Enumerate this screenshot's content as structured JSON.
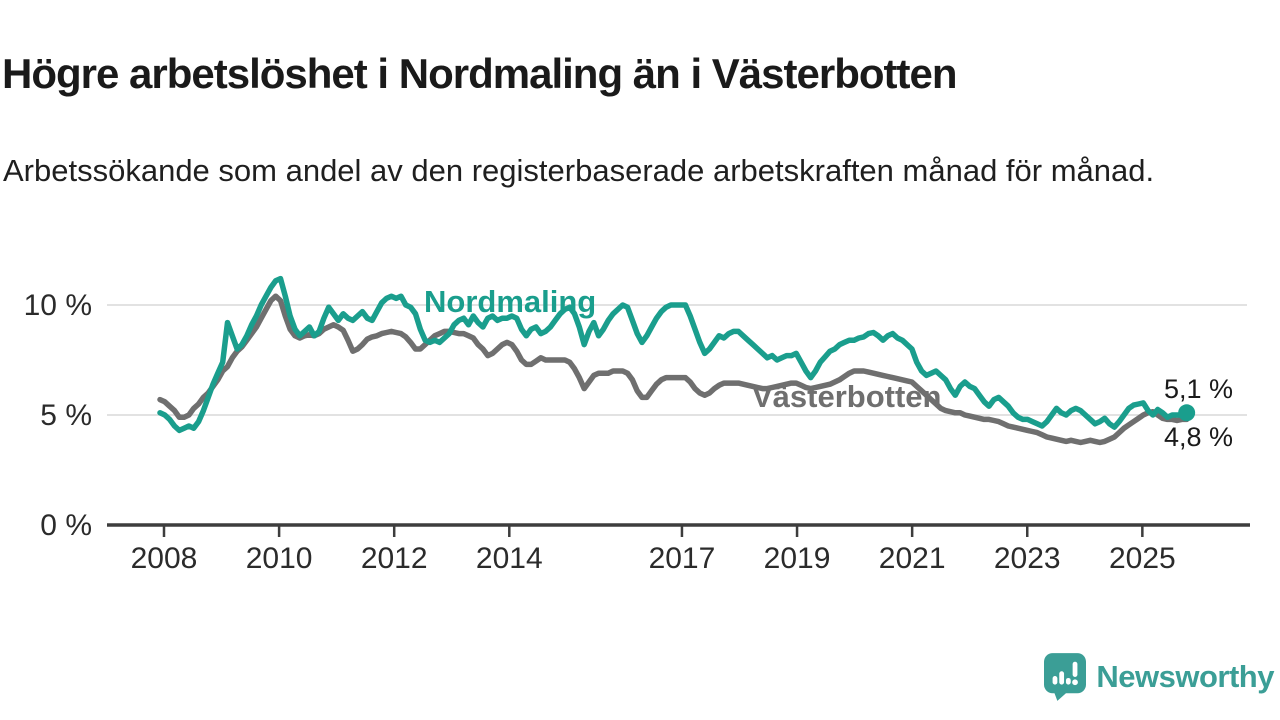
{
  "header": {
    "title": "Högre arbetslöshet i Nordmaling än i Västerbotten",
    "subtitle": "Arbetssökande som andel av den registerbaserade arbetskraften månad för månad."
  },
  "chart_data": {
    "type": "line",
    "unit": "%",
    "frequency": "monthly",
    "x_range": [
      "2008-01",
      "2025-10"
    ],
    "ylim": [
      0,
      11.6
    ],
    "grid": "horizontal-only",
    "legend_position": "inline-labels-on-lines",
    "x_ticks": [
      {
        "year": 2008,
        "label": "2008"
      },
      {
        "year": 2010,
        "label": "2010"
      },
      {
        "year": 2012,
        "label": "2012"
      },
      {
        "year": 2014,
        "label": "2014"
      },
      {
        "year": 2017,
        "label": "2017"
      },
      {
        "year": 2019,
        "label": "2019"
      },
      {
        "year": 2021,
        "label": "2021"
      },
      {
        "year": 2023,
        "label": "2023"
      },
      {
        "year": 2025,
        "label": "2025"
      }
    ],
    "y_ticks": [
      {
        "value": 10,
        "label": "10 %"
      },
      {
        "value": 5,
        "label": "5 %"
      },
      {
        "value": 0,
        "label": "0 %"
      }
    ],
    "series": [
      {
        "name": "Nordmaling",
        "color": "#1a9e8d",
        "end_value_label": "5,1 %",
        "values": [
          5.1,
          5.0,
          4.8,
          4.5,
          4.3,
          4.4,
          4.5,
          4.4,
          4.7,
          5.2,
          5.8,
          6.4,
          6.9,
          7.4,
          9.2,
          8.6,
          8.0,
          8.2,
          8.6,
          9.1,
          9.5,
          10.0,
          10.4,
          10.8,
          11.1,
          11.2,
          10.4,
          9.5,
          8.9,
          8.6,
          8.8,
          9.0,
          8.6,
          8.8,
          9.4,
          9.9,
          9.6,
          9.3,
          9.6,
          9.4,
          9.3,
          9.5,
          9.7,
          9.4,
          9.3,
          9.7,
          10.1,
          10.3,
          10.4,
          10.3,
          10.4,
          10.0,
          9.9,
          9.6,
          8.9,
          8.4,
          8.3,
          8.4,
          8.3,
          8.5,
          8.7,
          9.1,
          9.3,
          9.4,
          9.1,
          9.5,
          9.2,
          9.0,
          9.4,
          9.5,
          9.3,
          9.4,
          9.4,
          9.5,
          9.4,
          8.9,
          8.6,
          8.9,
          9.0,
          8.7,
          8.8,
          9.0,
          9.3,
          9.6,
          9.8,
          9.9,
          9.6,
          9.0,
          8.2,
          8.8,
          9.2,
          8.6,
          8.9,
          9.3,
          9.6,
          9.8,
          10.0,
          9.9,
          9.3,
          8.7,
          8.3,
          8.6,
          9.0,
          9.4,
          9.7,
          9.9,
          10.0,
          10.0,
          10.0,
          10.0,
          9.5,
          8.9,
          8.3,
          7.8,
          8.0,
          8.3,
          8.6,
          8.5,
          8.7,
          8.8,
          8.8,
          8.6,
          8.4,
          8.2,
          8.0,
          7.8,
          7.6,
          7.7,
          7.5,
          7.6,
          7.7,
          7.7,
          7.8,
          7.4,
          7.0,
          6.7,
          7.0,
          7.4,
          7.65,
          7.9,
          8.0,
          8.2,
          8.3,
          8.4,
          8.4,
          8.5,
          8.55,
          8.7,
          8.75,
          8.6,
          8.4,
          8.6,
          8.7,
          8.5,
          8.4,
          8.2,
          8.0,
          7.4,
          7.0,
          6.8,
          6.9,
          7.0,
          6.8,
          6.6,
          6.2,
          5.9,
          6.3,
          6.5,
          6.3,
          6.2,
          5.9,
          5.6,
          5.4,
          5.7,
          5.8,
          5.6,
          5.4,
          5.1,
          4.9,
          4.8,
          4.8,
          4.7,
          4.6,
          4.5,
          4.7,
          5.0,
          5.3,
          5.1,
          5.0,
          5.2,
          5.3,
          5.2,
          5.0,
          4.8,
          4.6,
          4.7,
          4.85,
          4.6,
          4.45,
          4.7,
          5.0,
          5.3,
          5.45,
          5.5,
          5.55,
          5.2,
          5.0,
          5.25,
          5.1,
          4.9,
          5.0,
          5.0,
          5.0,
          5.1
        ]
      },
      {
        "name": "Västerbotten",
        "color": "#6f6f6f",
        "end_value_label": "4,8 %",
        "values": [
          5.7,
          5.6,
          5.4,
          5.2,
          4.9,
          4.9,
          5.0,
          5.3,
          5.5,
          5.8,
          6.0,
          6.3,
          6.6,
          7.0,
          7.2,
          7.6,
          7.9,
          8.1,
          8.4,
          8.7,
          9.0,
          9.4,
          9.8,
          10.2,
          10.4,
          10.2,
          9.5,
          8.9,
          8.6,
          8.5,
          8.6,
          8.65,
          8.6,
          8.7,
          8.9,
          9.0,
          9.1,
          9.0,
          8.85,
          8.4,
          7.9,
          8.0,
          8.2,
          8.45,
          8.55,
          8.6,
          8.7,
          8.75,
          8.8,
          8.75,
          8.7,
          8.55,
          8.3,
          8.0,
          8.0,
          8.2,
          8.4,
          8.6,
          8.7,
          8.8,
          8.8,
          8.75,
          8.7,
          8.7,
          8.6,
          8.5,
          8.2,
          8.0,
          7.7,
          7.8,
          8.0,
          8.2,
          8.3,
          8.2,
          7.9,
          7.5,
          7.3,
          7.3,
          7.45,
          7.6,
          7.5,
          7.5,
          7.5,
          7.5,
          7.5,
          7.4,
          7.1,
          6.7,
          6.2,
          6.5,
          6.8,
          6.9,
          6.9,
          6.9,
          7.0,
          7.0,
          7.0,
          6.9,
          6.6,
          6.1,
          5.8,
          5.8,
          6.1,
          6.4,
          6.6,
          6.7,
          6.7,
          6.7,
          6.7,
          6.7,
          6.5,
          6.2,
          6.0,
          5.9,
          6.0,
          6.2,
          6.35,
          6.45,
          6.45,
          6.45,
          6.45,
          6.4,
          6.35,
          6.3,
          6.25,
          6.2,
          6.2,
          6.25,
          6.3,
          6.35,
          6.4,
          6.45,
          6.45,
          6.35,
          6.25,
          6.2,
          6.25,
          6.3,
          6.35,
          6.4,
          6.5,
          6.6,
          6.75,
          6.9,
          7.0,
          7.0,
          7.0,
          6.95,
          6.9,
          6.85,
          6.8,
          6.75,
          6.7,
          6.65,
          6.6,
          6.55,
          6.5,
          6.3,
          6.1,
          5.9,
          5.7,
          5.5,
          5.3,
          5.2,
          5.15,
          5.1,
          5.1,
          5.0,
          4.95,
          4.9,
          4.85,
          4.8,
          4.8,
          4.75,
          4.7,
          4.6,
          4.5,
          4.45,
          4.4,
          4.35,
          4.3,
          4.25,
          4.2,
          4.1,
          4.0,
          3.95,
          3.9,
          3.85,
          3.8,
          3.85,
          3.8,
          3.75,
          3.8,
          3.85,
          3.8,
          3.75,
          3.8,
          3.9,
          4.0,
          4.2,
          4.4,
          4.55,
          4.7,
          4.85,
          5.0,
          5.1,
          5.15,
          5.0,
          4.85,
          4.8,
          4.8,
          4.75,
          4.8,
          4.8
        ]
      }
    ]
  },
  "footer": {
    "brand": "Newsworthy"
  },
  "colors": {
    "nordmaling_teal": "#1a9e8d",
    "vasterbotten_gray": "#6f6f6f",
    "brand_teal": "#3b9e96",
    "title_text": "#1a1a1a",
    "grid": "#d8d8d8",
    "axis": "#3d3d3d"
  }
}
